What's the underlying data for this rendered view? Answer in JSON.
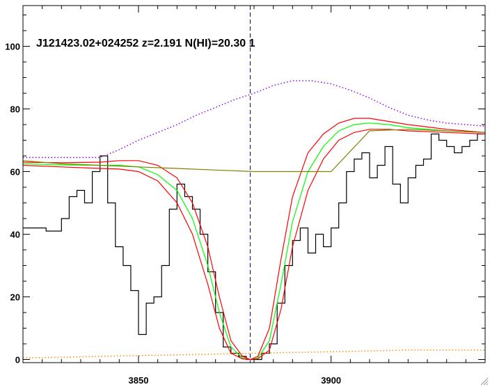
{
  "chart_data": {
    "type": "line",
    "title": "J121423.02+024252 z=2.191 N(HI)=20.30 1",
    "xlabel": "",
    "ylabel": "",
    "xlim": [
      3820,
      3940
    ],
    "ylim": [
      -1,
      113
    ],
    "xticks": [
      3850,
      3900
    ],
    "yticks": [
      0,
      20,
      40,
      60,
      80,
      100
    ],
    "grid": false,
    "marker_line_x": 3879,
    "series": [
      {
        "name": "",
        "style": "step",
        "color": "#000000",
        "x": [
          3820,
          3826,
          3830,
          3832,
          3834,
          3836,
          3838,
          3840,
          3842,
          3844,
          3846,
          3848,
          3850,
          3852,
          3854,
          3856,
          3858,
          3860,
          3862,
          3864,
          3866,
          3868,
          3870,
          3872,
          3874,
          3876,
          3878,
          3880,
          3882,
          3884,
          3886,
          3888,
          3890,
          3892,
          3894,
          3896,
          3898,
          3900,
          3902,
          3904,
          3906,
          3908,
          3910,
          3912,
          3914,
          3916,
          3918,
          3920,
          3922,
          3924,
          3926,
          3928,
          3930,
          3932,
          3934,
          3936,
          3938,
          3940
        ],
        "y": [
          42,
          41,
          45,
          52,
          54,
          50,
          60,
          65,
          50,
          36,
          30,
          22,
          8,
          18,
          20,
          30,
          48,
          56,
          52,
          48,
          40,
          28,
          15,
          4,
          2,
          1,
          0,
          0,
          2,
          5,
          18,
          30,
          38,
          42,
          34,
          40,
          36,
          42,
          50,
          60,
          64,
          66,
          58,
          62,
          68,
          56,
          50,
          58,
          62,
          64,
          72,
          70,
          68,
          66,
          68,
          70,
          72,
          72
        ]
      },
      {
        "name": "",
        "style": "line",
        "color": "#00ff00",
        "x": [
          3820,
          3830,
          3840,
          3845,
          3850,
          3855,
          3860,
          3864,
          3868,
          3871,
          3874,
          3877,
          3879,
          3881,
          3884,
          3887,
          3890,
          3894,
          3898,
          3902,
          3906,
          3910,
          3915,
          3920,
          3930,
          3940
        ],
        "y": [
          62.5,
          62.1,
          62,
          62,
          61.5,
          59,
          54,
          45,
          30,
          15,
          4,
          0.5,
          0,
          0.5,
          6,
          24,
          44,
          60,
          68,
          73,
          75,
          75.5,
          75,
          74,
          73,
          72.5
        ]
      },
      {
        "name": "",
        "style": "line",
        "color": "#ff0000",
        "x": [
          3820,
          3830,
          3840,
          3845,
          3850,
          3855,
          3860,
          3864,
          3868,
          3871,
          3874,
          3877,
          3879,
          3881,
          3884,
          3887,
          3890,
          3894,
          3898,
          3902,
          3906,
          3910,
          3915,
          3920,
          3930,
          3940
        ],
        "y": [
          63,
          62.8,
          63,
          63.5,
          63.5,
          62,
          58,
          50,
          36,
          20,
          6,
          1,
          0,
          1,
          10,
          32,
          52,
          66,
          72,
          75.5,
          77,
          77,
          76,
          75,
          73.5,
          72.5
        ]
      },
      {
        "name": "",
        "style": "line",
        "color": "#ff0000",
        "x": [
          3820,
          3830,
          3840,
          3845,
          3850,
          3855,
          3860,
          3864,
          3868,
          3871,
          3874,
          3877,
          3879,
          3881,
          3884,
          3887,
          3890,
          3894,
          3898,
          3902,
          3906,
          3910,
          3915,
          3920,
          3930,
          3940
        ],
        "y": [
          62,
          61.5,
          61,
          60.8,
          60,
          57,
          50,
          40,
          24,
          10,
          2,
          0.2,
          0,
          0.2,
          3,
          16,
          36,
          54,
          64,
          70,
          72.5,
          73.5,
          73.5,
          73,
          72.5,
          72
        ]
      },
      {
        "name": "",
        "style": "line",
        "color": "#808000",
        "x": [
          3820,
          3830,
          3840,
          3850,
          3860,
          3870,
          3880,
          3890,
          3900,
          3910,
          3920,
          3930,
          3940
        ],
        "y": [
          63.5,
          62.5,
          62,
          61.5,
          61,
          60.5,
          60,
          60,
          60,
          73,
          73.5,
          73,
          72.5
        ]
      },
      {
        "name": "",
        "style": "dotted",
        "color": "#8800ff",
        "x": [
          3820,
          3830,
          3840,
          3845,
          3850,
          3855,
          3860,
          3865,
          3870,
          3875,
          3880,
          3885,
          3890,
          3895,
          3900,
          3905,
          3910,
          3915,
          3920,
          3925,
          3930,
          3935,
          3940
        ],
        "y": [
          64.5,
          64.5,
          64.5,
          67,
          70,
          72.5,
          75,
          78,
          80.5,
          83,
          85,
          87.5,
          89,
          89,
          88,
          86,
          83.5,
          80.5,
          78,
          76.5,
          75.5,
          75,
          74.5
        ]
      },
      {
        "name": "",
        "style": "dotted",
        "color": "#ff8800",
        "x": [
          3820,
          3840,
          3860,
          3880,
          3900,
          3920,
          3940
        ],
        "y": [
          0.5,
          1,
          1.5,
          2,
          2.5,
          3,
          3
        ]
      }
    ]
  }
}
